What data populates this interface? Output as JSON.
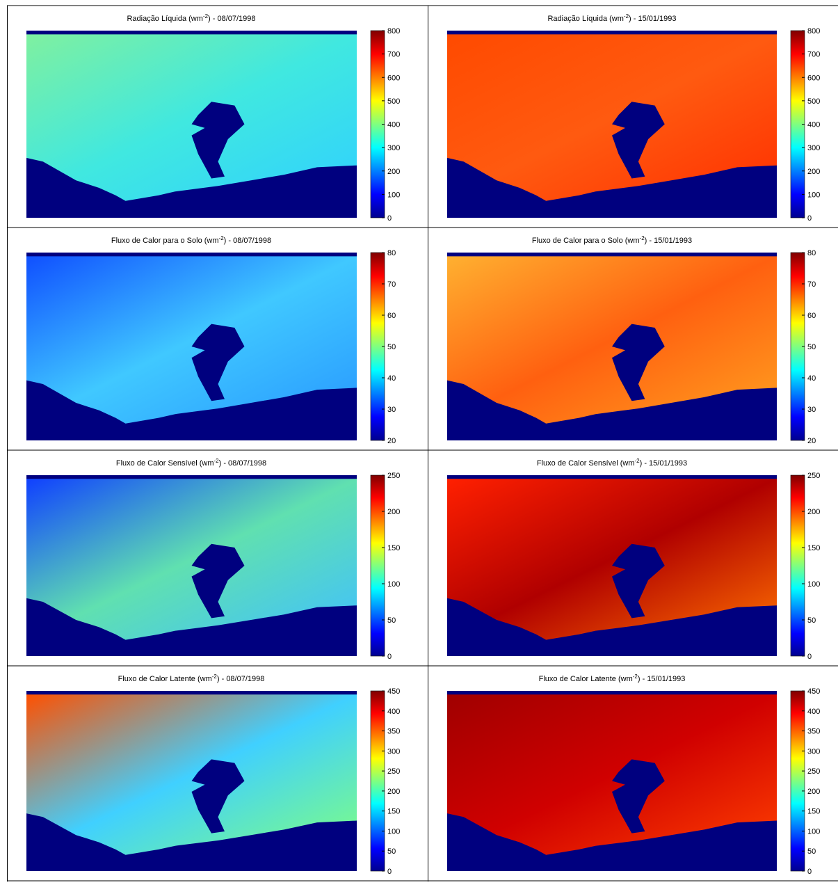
{
  "panels": [
    {
      "title": {
        "before": "Radiação Líquida (wm",
        "sup": "-2",
        "after": ") - 08/07/1998"
      },
      "clim": [
        0,
        800
      ],
      "ticks": [
        0,
        100,
        200,
        300,
        400,
        500,
        600,
        700,
        800
      ]
    },
    {
      "title": {
        "before": "Radiação Líquida (wm",
        "sup": "-2",
        "after": ") - 15/01/1993"
      },
      "clim": [
        0,
        800
      ],
      "ticks": [
        0,
        100,
        200,
        300,
        400,
        500,
        600,
        700,
        800
      ]
    },
    {
      "title": {
        "before": "Fluxo de Calor para o Solo (wm",
        "sup": "-2",
        "after": ") - 08/07/1998"
      },
      "clim": [
        20,
        80
      ],
      "ticks": [
        20,
        30,
        40,
        50,
        60,
        70,
        80
      ]
    },
    {
      "title": {
        "before": "Fluxo de Calor para o Solo (wm",
        "sup": "-2",
        "after": ") - 15/01/1993"
      },
      "clim": [
        20,
        80
      ],
      "ticks": [
        20,
        30,
        40,
        50,
        60,
        70,
        80
      ]
    },
    {
      "title": {
        "before": "Fluxo de Calor Sensível (wm",
        "sup": "-2",
        "after": ") - 08/07/1998"
      },
      "clim": [
        0,
        250
      ],
      "ticks": [
        0,
        50,
        100,
        150,
        200,
        250
      ]
    },
    {
      "title": {
        "before": "Fluxo de Calor Sensível (wm",
        "sup": "-2",
        "after": ") - 15/01/1993"
      },
      "clim": [
        0,
        250
      ],
      "ticks": [
        0,
        50,
        100,
        150,
        200,
        250
      ]
    },
    {
      "title": {
        "before": "Fluxo de Calor Latente (wm",
        "sup": "-2",
        "after": ") - 08/07/1998"
      },
      "clim": [
        0,
        450
      ],
      "ticks": [
        0,
        50,
        100,
        150,
        200,
        250,
        300,
        350,
        400,
        450
      ]
    },
    {
      "title": {
        "before": "Fluxo de Calor Latente (wm",
        "sup": "-2",
        "after": ") - 15/01/1993"
      },
      "clim": [
        0,
        450
      ],
      "ticks": [
        0,
        50,
        100,
        150,
        200,
        250,
        300,
        350,
        400,
        450
      ]
    }
  ]
}
